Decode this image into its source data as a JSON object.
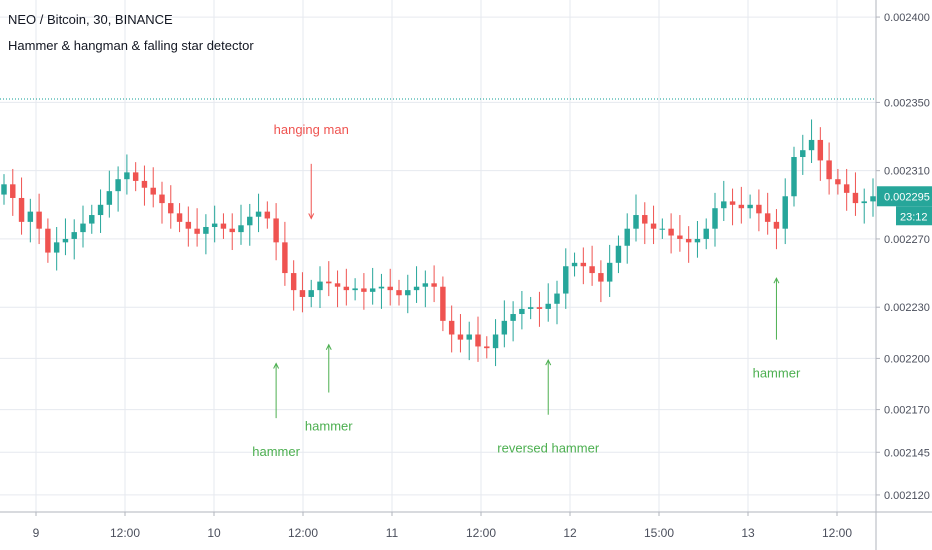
{
  "header": {
    "title": "NEO / Bitcoin, 30, BINANCE",
    "indicator": "Hammer & hangman & falling star detector"
  },
  "price_axis": {
    "ticks": [
      "0.002400",
      "0.002350",
      "0.002310",
      "0.002270",
      "0.002230",
      "0.002200",
      "0.002170",
      "0.002145",
      "0.002120"
    ],
    "last_price": "0.002295",
    "countdown": "23:12"
  },
  "time_axis": {
    "ticks": [
      "9",
      "12:00",
      "10",
      "12:00",
      "11",
      "12:00",
      "12",
      "15:00",
      "13",
      "12:00"
    ]
  },
  "chart_data": {
    "type": "candlestick",
    "symbol": "NEO / Bitcoin, 30, BINANCE",
    "interval_minutes": 30,
    "ylim": [
      0.00211,
      0.00241
    ],
    "y_axis_side": "right",
    "grid": true,
    "horizontal_line": 0.002352,
    "colors": {
      "up": "#26a69a",
      "down": "#ef5350",
      "bull_signal": "#4caf50",
      "bear_signal": "#ef5350",
      "last_price_bg": "#26a69a"
    },
    "candles": [
      0.002302,
      0.002294,
      0.00228,
      0.002286,
      0.002276,
      0.002262,
      0.002268,
      0.00227,
      0.002274,
      0.002279,
      0.002284,
      0.00229,
      0.002298,
      0.002305,
      0.002309,
      0.002304,
      0.0023,
      0.002296,
      0.002291,
      0.002285,
      0.00228,
      0.002276,
      0.002273,
      0.002277,
      0.002279,
      0.002276,
      0.002274,
      0.002278,
      0.002283,
      0.002286,
      0.002282,
      0.002268,
      0.00225,
      0.00224,
      0.002236,
      0.00224,
      0.002245,
      0.002244,
      0.002242,
      0.00224,
      0.002241,
      0.002239,
      0.002241,
      0.002242,
      0.00224,
      0.002237,
      0.00224,
      0.002242,
      0.002244,
      0.002242,
      0.002222,
      0.002214,
      0.002211,
      0.002214,
      0.002207,
      0.002206,
      0.002214,
      0.002222,
      0.002226,
      0.002229,
      0.00223,
      0.002229,
      0.002232,
      0.002238,
      0.002254,
      0.002256,
      0.002254,
      0.00225,
      0.002245,
      0.002256,
      0.002266,
      0.002276,
      0.002284,
      0.002279,
      0.002276,
      0.002276,
      0.002272,
      0.00227,
      0.002268,
      0.00227,
      0.002276,
      0.002288,
      0.002292,
      0.00229,
      0.002288,
      0.00229,
      0.002285,
      0.00228,
      0.002276,
      0.002295,
      0.002318,
      0.002322,
      0.002328,
      0.002316,
      0.002305,
      0.002302,
      0.002297,
      0.002291,
      0.002292,
      0.002295
    ],
    "signals": [
      {
        "label": "hanging man",
        "type": "bearish",
        "candle_index": 35,
        "arrow_from": 0.002314,
        "arrow_to": 0.002282
      },
      {
        "label": "hammer",
        "type": "bullish",
        "candle_index": 31,
        "arrow_from": 0.002165,
        "arrow_to": 0.002197
      },
      {
        "label": "hammer",
        "type": "bullish",
        "candle_index": 37,
        "arrow_from": 0.00218,
        "arrow_to": 0.002208
      },
      {
        "label": "reversed hammer",
        "type": "bullish",
        "candle_index": 62,
        "arrow_from": 0.002167,
        "arrow_to": 0.002199
      },
      {
        "label": "hammer",
        "type": "bullish",
        "candle_index": 88,
        "arrow_from": 0.002211,
        "arrow_to": 0.002247
      }
    ]
  }
}
